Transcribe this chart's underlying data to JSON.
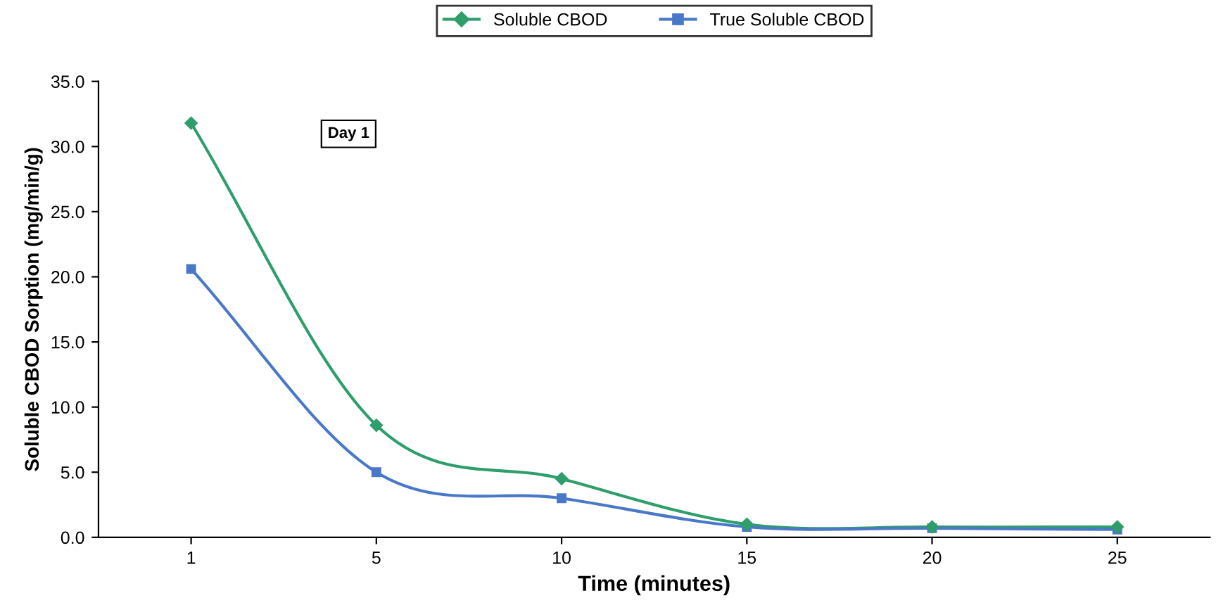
{
  "chart_data": {
    "type": "line",
    "xlabel": "Time (minutes)",
    "ylabel": "Soluble CBOD Sorption (mg/min/g)",
    "categories": [
      "1",
      "5",
      "10",
      "15",
      "20",
      "25"
    ],
    "series": [
      {
        "name": "Soluble CBOD",
        "color": "#2e9e6b",
        "values": [
          31.8,
          8.6,
          4.5,
          1.0,
          0.8,
          0.8
        ],
        "marker": "diamond"
      },
      {
        "name": "True Soluble CBOD",
        "color": "#4a78c8",
        "values": [
          20.6,
          5.0,
          3.0,
          0.8,
          0.7,
          0.6
        ],
        "marker": "square"
      }
    ],
    "ylim": [
      0,
      35
    ],
    "yticks": [
      {
        "value": 0,
        "label": "0.0"
      },
      {
        "value": 5,
        "label": "5.0"
      },
      {
        "value": 10,
        "label": "10.0"
      },
      {
        "value": 15,
        "label": "15.0"
      },
      {
        "value": 20,
        "label": "20.0"
      },
      {
        "value": 25,
        "label": "25.0"
      },
      {
        "value": 30,
        "label": "30.0"
      },
      {
        "value": 35,
        "label": "35.0"
      }
    ],
    "annotations": [
      "Day 1"
    ],
    "legend": "top",
    "grid": false,
    "line_style": "solid"
  }
}
